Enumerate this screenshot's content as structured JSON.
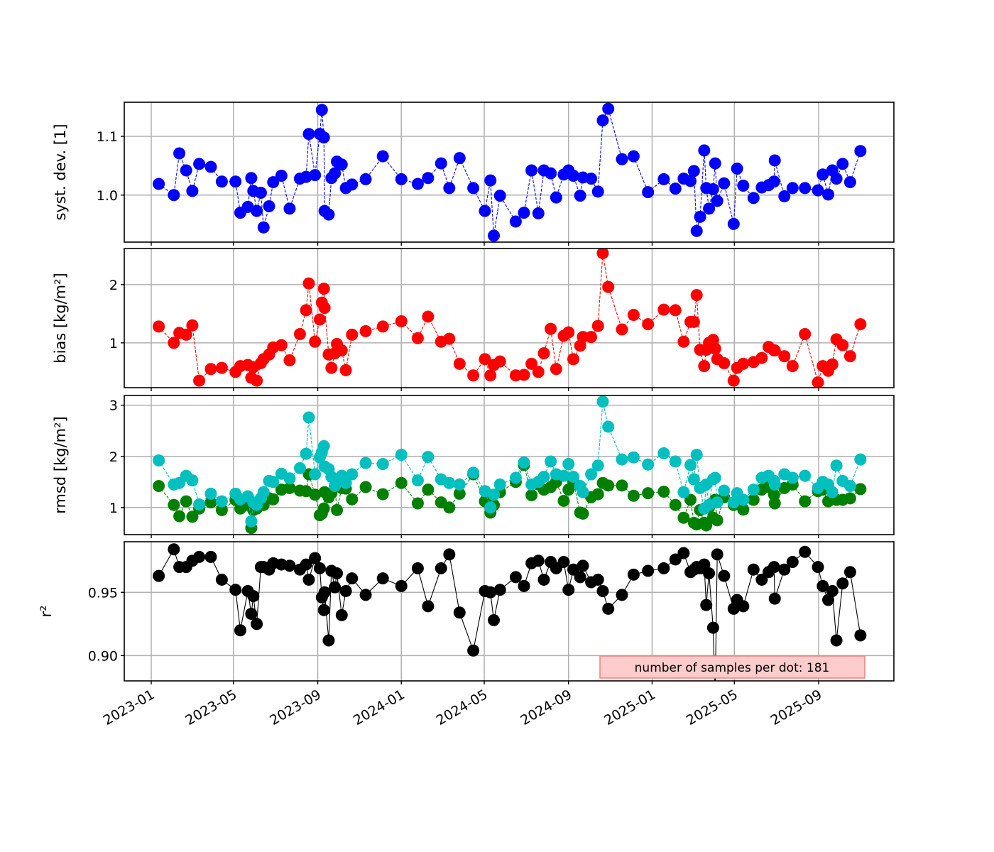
{
  "chart_data": {
    "type": "line",
    "dates": [
      "2023-01-12",
      "2023-02-03",
      "2023-02-11",
      "2023-02-21",
      "2023-03-02",
      "2023-03-12",
      "2023-03-29",
      "2023-04-14",
      "2023-05-04",
      "2023-05-11",
      "2023-05-22",
      "2023-05-27",
      "2023-05-30",
      "2023-06-04",
      "2023-06-10",
      "2023-06-14",
      "2023-06-22",
      "2023-06-28",
      "2023-07-10",
      "2023-07-22",
      "2023-08-06",
      "2023-08-15",
      "2023-08-19",
      "2023-08-28",
      "2023-09-04",
      "2023-09-07",
      "2023-09-10",
      "2023-09-11",
      "2023-09-17",
      "2023-09-21",
      "2023-09-26",
      "2023-09-29",
      "2023-10-06",
      "2023-10-12",
      "2023-10-21",
      "2023-11-10",
      "2023-12-05",
      "2024-01-01",
      "2024-01-25",
      "2024-02-09",
      "2024-02-28",
      "2024-03-11",
      "2024-03-26",
      "2024-04-15",
      "2024-05-02",
      "2024-05-10",
      "2024-05-15",
      "2024-05-24",
      "2024-06-16",
      "2024-06-28",
      "2024-07-09",
      "2024-07-19",
      "2024-07-27",
      "2024-08-06",
      "2024-08-14",
      "2024-08-25",
      "2024-09-01",
      "2024-09-08",
      "2024-09-18",
      "2024-09-22",
      "2024-10-04",
      "2024-10-14",
      "2024-10-21",
      "2024-10-29",
      "2024-11-18",
      "2024-12-05",
      "2024-12-26",
      "2025-01-18",
      "2025-02-04",
      "2025-02-16",
      "2025-02-26",
      "2025-03-03",
      "2025-03-07",
      "2025-03-12",
      "2025-03-18",
      "2025-03-21",
      "2025-03-25",
      "2025-03-31",
      "2025-04-03",
      "2025-04-06",
      "2025-04-16",
      "2025-04-30",
      "2025-05-05",
      "2025-05-14",
      "2025-05-29",
      "2025-06-10",
      "2025-06-20",
      "2025-06-28",
      "2025-06-29",
      "2025-07-13",
      "2025-07-25",
      "2025-08-12",
      "2025-08-31",
      "2025-09-07",
      "2025-09-15",
      "2025-09-21",
      "2025-09-27",
      "2025-10-06",
      "2025-10-17",
      "2025-11-01"
    ],
    "x_ticks": [
      "2023-01",
      "2023-05",
      "2023-09",
      "2024-01",
      "2024-05",
      "2024-09",
      "2025-01",
      "2025-05",
      "2025-09"
    ],
    "panels": [
      {
        "ylabel": "syst. dev. [1]",
        "ylim": [
          0.92,
          1.158
        ],
        "yticks": [
          "1.0",
          "1.1"
        ],
        "linestyle": "dashed",
        "series": [
          {
            "name": "syst. dev.",
            "color": "#0000ff",
            "values": [
              1.019,
              1.0,
              1.071,
              1.042,
              1.007,
              1.053,
              1.048,
              1.023,
              1.023,
              0.97,
              0.98,
              1.029,
              1.007,
              0.973,
              1.004,
              0.945,
              0.981,
              1.022,
              1.033,
              0.977,
              1.028,
              1.031,
              1.104,
              1.034,
              1.104,
              1.145,
              1.098,
              0.973,
              0.967,
              1.029,
              1.037,
              1.057,
              1.052,
              1.012,
              1.018,
              1.027,
              1.066,
              1.027,
              1.019,
              1.029,
              1.054,
              1.012,
              1.063,
              1.012,
              0.973,
              1.025,
              0.931,
              0.999,
              0.955,
              0.97,
              1.042,
              0.969,
              1.042,
              1.037,
              0.996,
              1.035,
              1.042,
              1.033,
              0.999,
              1.03,
              1.028,
              1.006,
              1.127,
              1.147,
              1.061,
              1.066,
              1.005,
              1.027,
              1.011,
              1.028,
              1.024,
              1.041,
              0.939,
              0.963,
              1.076,
              1.012,
              0.977,
              1.01,
              1.054,
              0.99,
              1.02,
              0.951,
              1.045,
              1.016,
              0.995,
              1.013,
              1.017,
              1.023,
              1.059,
              0.998,
              1.012,
              1.012,
              1.008,
              1.035,
              1.001,
              1.042,
              1.028,
              1.053,
              1.022,
              1.075
            ]
          }
        ]
      },
      {
        "ylabel": "bias [kg/m²]",
        "ylim": [
          0.23,
          2.62
        ],
        "yticks": [
          "1",
          "2"
        ],
        "linestyle": "dashed",
        "series": [
          {
            "name": "bias",
            "color": "#ff0000",
            "values": [
              1.28,
              1.0,
              1.17,
              1.14,
              1.3,
              0.35,
              0.55,
              0.57,
              0.5,
              0.6,
              0.62,
              0.4,
              0.58,
              0.35,
              0.65,
              0.72,
              0.8,
              0.92,
              0.96,
              0.7,
              1.15,
              1.56,
              2.02,
              1.02,
              1.4,
              1.69,
              1.93,
              1.6,
              0.8,
              0.57,
              0.82,
              0.98,
              0.87,
              0.53,
              1.14,
              1.2,
              1.28,
              1.37,
              1.08,
              1.45,
              1.02,
              1.07,
              0.64,
              0.44,
              0.72,
              0.44,
              0.62,
              0.68,
              0.44,
              0.45,
              0.64,
              0.5,
              0.82,
              1.24,
              0.55,
              1.12,
              1.18,
              0.72,
              0.95,
              1.1,
              1.1,
              1.29,
              2.54,
              1.96,
              1.23,
              1.48,
              1.32,
              1.57,
              1.56,
              1.02,
              1.36,
              1.36,
              1.82,
              0.88,
              0.6,
              0.88,
              1.0,
              1.05,
              0.9,
              0.72,
              0.65,
              0.35,
              0.57,
              0.64,
              0.67,
              0.74,
              0.93,
              0.87,
              0.87,
              0.77,
              0.6,
              1.15,
              0.32,
              0.6,
              0.52,
              0.63,
              1.06,
              0.96,
              0.77,
              1.32
            ]
          }
        ]
      },
      {
        "ylabel": "rmsd [kg/m²]",
        "ylim": [
          0.47,
          3.19
        ],
        "yticks": [
          "1",
          "2",
          "3"
        ],
        "linestyle": "dashed",
        "series": [
          {
            "name": "rmsd (lower)",
            "color": "#008000",
            "values": [
              1.42,
              1.05,
              0.83,
              1.12,
              0.82,
              0.98,
              1.1,
              0.95,
              1.15,
              0.98,
              1.05,
              0.6,
              0.95,
              0.98,
              1.05,
              1.05,
              1.18,
              1.16,
              1.35,
              1.38,
              1.33,
              1.32,
              1.65,
              1.25,
              0.85,
              0.88,
              0.98,
              1.3,
              1.2,
              1.28,
              1.42,
              0.95,
              1.38,
              1.37,
              1.16,
              1.4,
              1.26,
              1.48,
              1.08,
              1.35,
              1.1,
              1.0,
              1.27,
              1.65,
              1.12,
              0.9,
              1.05,
              1.3,
              1.5,
              1.83,
              1.24,
              1.45,
              1.35,
              1.4,
              1.5,
              1.13,
              1.35,
              1.5,
              0.9,
              0.88,
              1.2,
              1.26,
              1.48,
              1.43,
              1.43,
              1.23,
              1.28,
              1.31,
              1.05,
              0.8,
              1.15,
              0.7,
              0.67,
              0.95,
              0.7,
              0.65,
              1.0,
              0.8,
              1.15,
              0.75,
              1.2,
              1.05,
              1.1,
              0.96,
              1.15,
              1.35,
              1.4,
              1.25,
              1.08,
              1.38,
              1.45,
              1.12,
              1.32,
              1.35,
              1.12,
              1.18,
              1.15,
              1.15,
              1.18,
              1.36
            ]
          },
          {
            "name": "rmsd (upper)",
            "color": "#00bfbf",
            "values": [
              1.92,
              1.45,
              1.48,
              1.62,
              1.53,
              1.06,
              1.27,
              1.12,
              1.27,
              1.16,
              1.22,
              0.73,
              1.1,
              1.05,
              1.18,
              1.3,
              1.52,
              1.5,
              1.66,
              1.57,
              1.77,
              2.05,
              2.76,
              1.65,
              1.98,
              2.08,
              2.2,
              1.8,
              1.75,
              1.6,
              1.42,
              1.55,
              1.62,
              1.48,
              1.65,
              1.87,
              1.85,
              2.03,
              1.53,
              1.99,
              1.55,
              1.48,
              1.45,
              1.68,
              1.32,
              1.0,
              1.25,
              1.45,
              1.58,
              1.88,
              1.45,
              1.5,
              1.6,
              1.9,
              1.65,
              1.62,
              1.85,
              1.6,
              1.42,
              1.3,
              1.65,
              1.82,
              3.07,
              2.58,
              1.94,
              1.98,
              1.84,
              2.06,
              1.9,
              1.3,
              1.83,
              1.55,
              2.03,
              1.38,
              0.98,
              1.45,
              1.05,
              1.55,
              1.58,
              1.1,
              1.33,
              1.1,
              1.28,
              1.15,
              1.35,
              1.58,
              1.62,
              1.52,
              1.45,
              1.65,
              1.58,
              1.62,
              1.38,
              1.5,
              1.45,
              1.3,
              1.82,
              1.52,
              1.42,
              1.94
            ]
          }
        ]
      },
      {
        "ylabel": "r²",
        "ylim": [
          0.88,
          0.99
        ],
        "yticks": [
          "0.90",
          "0.95"
        ],
        "linestyle": "solid",
        "series": [
          {
            "name": "r²",
            "color": "#000000",
            "values": [
              0.963,
              0.984,
              0.97,
              0.97,
              0.975,
              0.978,
              0.978,
              0.96,
              0.952,
              0.92,
              0.951,
              0.933,
              0.947,
              0.925,
              0.97,
              0.97,
              0.968,
              0.973,
              0.972,
              0.971,
              0.968,
              0.972,
              0.96,
              0.977,
              0.969,
              0.946,
              0.936,
              0.95,
              0.912,
              0.967,
              0.954,
              0.965,
              0.932,
              0.951,
              0.961,
              0.948,
              0.961,
              0.955,
              0.969,
              0.939,
              0.969,
              0.98,
              0.934,
              0.904,
              0.951,
              0.95,
              0.928,
              0.952,
              0.962,
              0.955,
              0.973,
              0.975,
              0.96,
              0.974,
              0.969,
              0.974,
              0.952,
              0.968,
              0.962,
              0.971,
              0.958,
              0.96,
              0.951,
              0.937,
              0.948,
              0.964,
              0.967,
              0.969,
              0.976,
              0.981,
              0.966,
              0.968,
              0.97,
              0.969,
              0.972,
              0.94,
              0.965,
              0.922,
              0.87,
              0.98,
              0.963,
              0.937,
              0.944,
              0.939,
              0.968,
              0.96,
              0.966,
              0.97,
              0.945,
              0.968,
              0.974,
              0.982,
              0.97,
              0.955,
              0.944,
              0.951,
              0.912,
              0.957,
              0.966,
              0.916
            ]
          }
        ],
        "annotation": "number of samples per dot: 181"
      }
    ]
  }
}
